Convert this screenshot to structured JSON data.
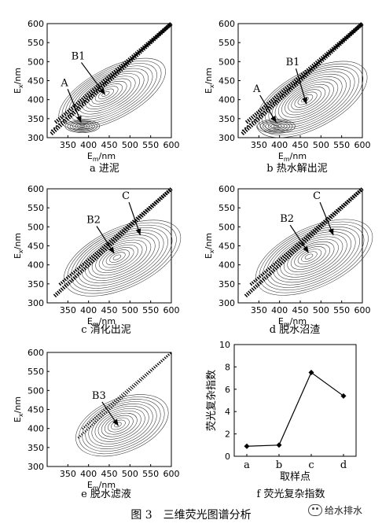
{
  "figure_caption": "图 3　三维荧光图谱分析",
  "watermark": "给水排水",
  "chart_data": [
    {
      "type": "contour",
      "caption": "a 进泥",
      "xlabel_main": "E",
      "xlabel_sub": "m",
      "xlabel_unit": "/nm",
      "ylabel_main": "E",
      "ylabel_sub": "x",
      "ylabel_unit": "/nm",
      "xlim": [
        300,
        600
      ],
      "ylim": [
        300,
        600
      ],
      "xticks": [
        "350",
        "400",
        "450",
        "500",
        "550",
        "600"
      ],
      "yticks": [
        "300",
        "350",
        "400",
        "450",
        "500",
        "550",
        "600"
      ],
      "annotations": [
        {
          "label": "B1",
          "text_x": 375,
          "text_y": 506,
          "point_x": 440,
          "point_y": 413
        },
        {
          "label": "A",
          "text_x": 342,
          "text_y": 436,
          "point_x": 382,
          "point_y": 340
        }
      ]
    },
    {
      "type": "contour",
      "caption": "b 热水解出泥",
      "xlabel_main": "E",
      "xlabel_sub": "m",
      "xlabel_unit": "/nm",
      "ylabel_main": "E",
      "ylabel_sub": "x",
      "ylabel_unit": "/nm",
      "xlim": [
        300,
        600
      ],
      "ylim": [
        300,
        600
      ],
      "xticks": [
        "350",
        "400",
        "450",
        "500",
        "550",
        "600"
      ],
      "yticks": [
        "300",
        "350",
        "400",
        "450",
        "500",
        "550",
        "600"
      ],
      "annotations": [
        {
          "label": "B1",
          "text_x": 432,
          "text_y": 490,
          "point_x": 465,
          "point_y": 388
        },
        {
          "label": "A",
          "text_x": 345,
          "text_y": 420,
          "point_x": 392,
          "point_y": 340
        }
      ]
    },
    {
      "type": "contour",
      "caption": "c 消化出泥",
      "xlabel_main": "E",
      "xlabel_sub": "m",
      "xlabel_unit": "/nm",
      "ylabel_main": "E",
      "ylabel_sub": "x",
      "ylabel_unit": "/nm",
      "xlim": [
        300,
        600
      ],
      "ylim": [
        300,
        600
      ],
      "xticks": [
        "350",
        "400",
        "450",
        "500",
        "550",
        "600"
      ],
      "yticks": [
        "300",
        "350",
        "400",
        "450",
        "500",
        "550",
        "600"
      ],
      "annotations": [
        {
          "label": "C",
          "text_x": 490,
          "text_y": 573,
          "point_x": 525,
          "point_y": 478
        },
        {
          "label": "B2",
          "text_x": 412,
          "text_y": 510,
          "point_x": 462,
          "point_y": 430
        }
      ]
    },
    {
      "type": "contour",
      "caption": "d 脱水沼渣",
      "xlabel_main": "E",
      "xlabel_sub": "m",
      "xlabel_unit": "/nm",
      "ylabel_main": "E",
      "ylabel_sub": "x",
      "ylabel_unit": "/nm",
      "xlim": [
        300,
        600
      ],
      "ylim": [
        300,
        600
      ],
      "xticks": [
        "350",
        "400",
        "450",
        "500",
        "550",
        "600"
      ],
      "yticks": [
        "300",
        "350",
        "400",
        "450",
        "500",
        "550",
        "600"
      ],
      "annotations": [
        {
          "label": "C",
          "text_x": 490,
          "text_y": 573,
          "point_x": 530,
          "point_y": 478
        },
        {
          "label": "B2",
          "text_x": 418,
          "text_y": 513,
          "point_x": 470,
          "point_y": 432
        }
      ]
    },
    {
      "type": "contour",
      "caption": "e 脱水滤液",
      "xlabel_main": "E",
      "xlabel_sub": "m",
      "xlabel_unit": "/nm",
      "ylabel_main": "E",
      "ylabel_sub": "x",
      "ylabel_unit": "/nm",
      "xlim": [
        300,
        600
      ],
      "ylim": [
        300,
        600
      ],
      "xticks": [
        "350",
        "400",
        "450",
        "500",
        "550",
        "600"
      ],
      "yticks": [
        "300",
        "350",
        "400",
        "450",
        "500",
        "550",
        "600"
      ],
      "annotations": [
        {
          "label": "B3",
          "text_x": 425,
          "text_y": 478,
          "point_x": 472,
          "point_y": 407
        }
      ]
    },
    {
      "type": "line",
      "caption": "f 荧光复杂指数",
      "xlabel": "取样点",
      "ylabel": "荧光复杂指数",
      "categories": [
        "a",
        "b",
        "c",
        "d"
      ],
      "values": [
        0.9,
        1.0,
        7.5,
        5.4
      ],
      "ylim": [
        0,
        10
      ],
      "yticks": [
        "0",
        "2",
        "4",
        "6",
        "8",
        "10"
      ],
      "marker": "diamond"
    }
  ]
}
